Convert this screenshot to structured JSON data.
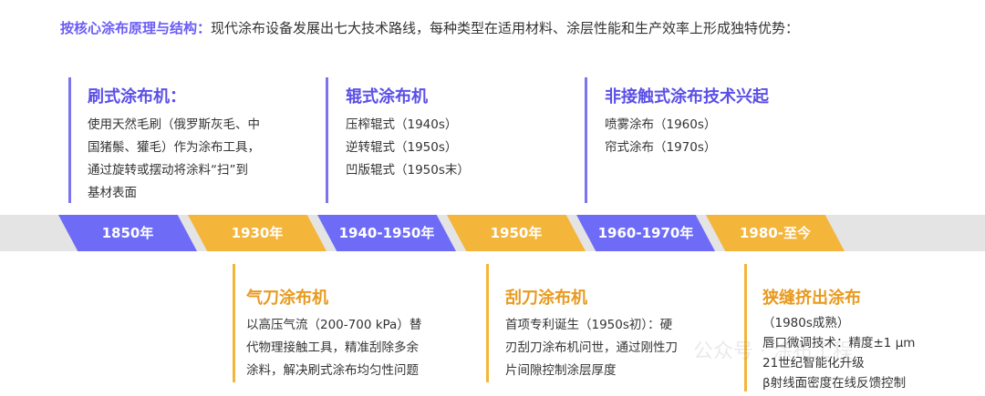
{
  "header": {
    "highlight": "按核心涂布原理与结构：",
    "text": "现代涂布设备发展出七大技术路线，每种类型在适用材料、涂层性能和生产效率上形成独特优势："
  },
  "timeline": [
    {
      "label": "1850年",
      "color": "#6e6cf7"
    },
    {
      "label": "1930年",
      "color": "#f3b53a"
    },
    {
      "label": "1940-1950年",
      "color": "#6e6cf7"
    },
    {
      "label": "1950年",
      "color": "#f3b53a"
    },
    {
      "label": "1960-1970年",
      "color": "#6e6cf7"
    },
    {
      "label": "1980-至今",
      "color": "#f3b53a"
    }
  ],
  "top": [
    {
      "title": "刷式涂布机：",
      "lines": [
        "使用天然毛刷（俄罗斯灰毛、中",
        "国猪鬃、獾毛）作为涂布工具，",
        "通过旋转或摆动将涂料“扫”到",
        "基材表面"
      ]
    },
    {
      "title": "辊式涂布机",
      "lines": [
        "压榨辊式（1940s）",
        "逆转辊式（1950s）",
        "凹版辊式（1950s末）"
      ]
    },
    {
      "title": "非接触式涂布技术兴起",
      "lines": [
        "喷雾涂布（1960s）",
        "帘式涂布（1970s）"
      ]
    }
  ],
  "bottom": [
    {
      "title": "气刀涂布机",
      "lines": [
        "以高压气流（200-700 kPa）替",
        "代物理接触工具，精准刮除多余",
        "涂料，解决刷式涂布均匀性问题"
      ]
    },
    {
      "title": "刮刀涂布机",
      "lines": [
        "首项专利诞生（1950s初）：硬",
        "刃刮刀涂布机问世，通过刚性刀",
        "片间隙控制涂层厚度"
      ]
    },
    {
      "title": "狭缝挤出涂布",
      "lines": [
        "（1980s成熟）",
        "唇口微调技术：精度±1 μm",
        "21世纪智能化升级",
        "β射线面密度在线反馈控制"
      ]
    }
  ],
  "watermark": "公众号 · 涂布工程"
}
